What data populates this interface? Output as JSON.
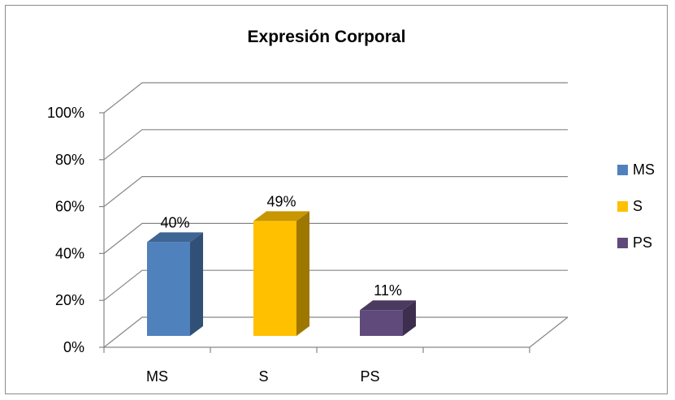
{
  "chart_data": {
    "type": "bar",
    "title": "Expresión Corporal",
    "categories": [
      "MS",
      "S",
      "PS"
    ],
    "values": [
      40,
      49,
      11
    ],
    "data_labels": [
      "40%",
      "49%",
      "11%"
    ],
    "colors": [
      "#4f81bd",
      "#ffc000",
      "#604a7b"
    ],
    "ylim": [
      0,
      100
    ],
    "yticks": [
      "0%",
      "20%",
      "40%",
      "60%",
      "80%",
      "100%"
    ],
    "grid": true,
    "legend": {
      "position": "right",
      "entries": [
        {
          "label": "MS",
          "color": "#4f81bd"
        },
        {
          "label": "S",
          "color": "#ffc000"
        },
        {
          "label": "PS",
          "color": "#604a7b"
        }
      ]
    },
    "style": "3d-column"
  }
}
